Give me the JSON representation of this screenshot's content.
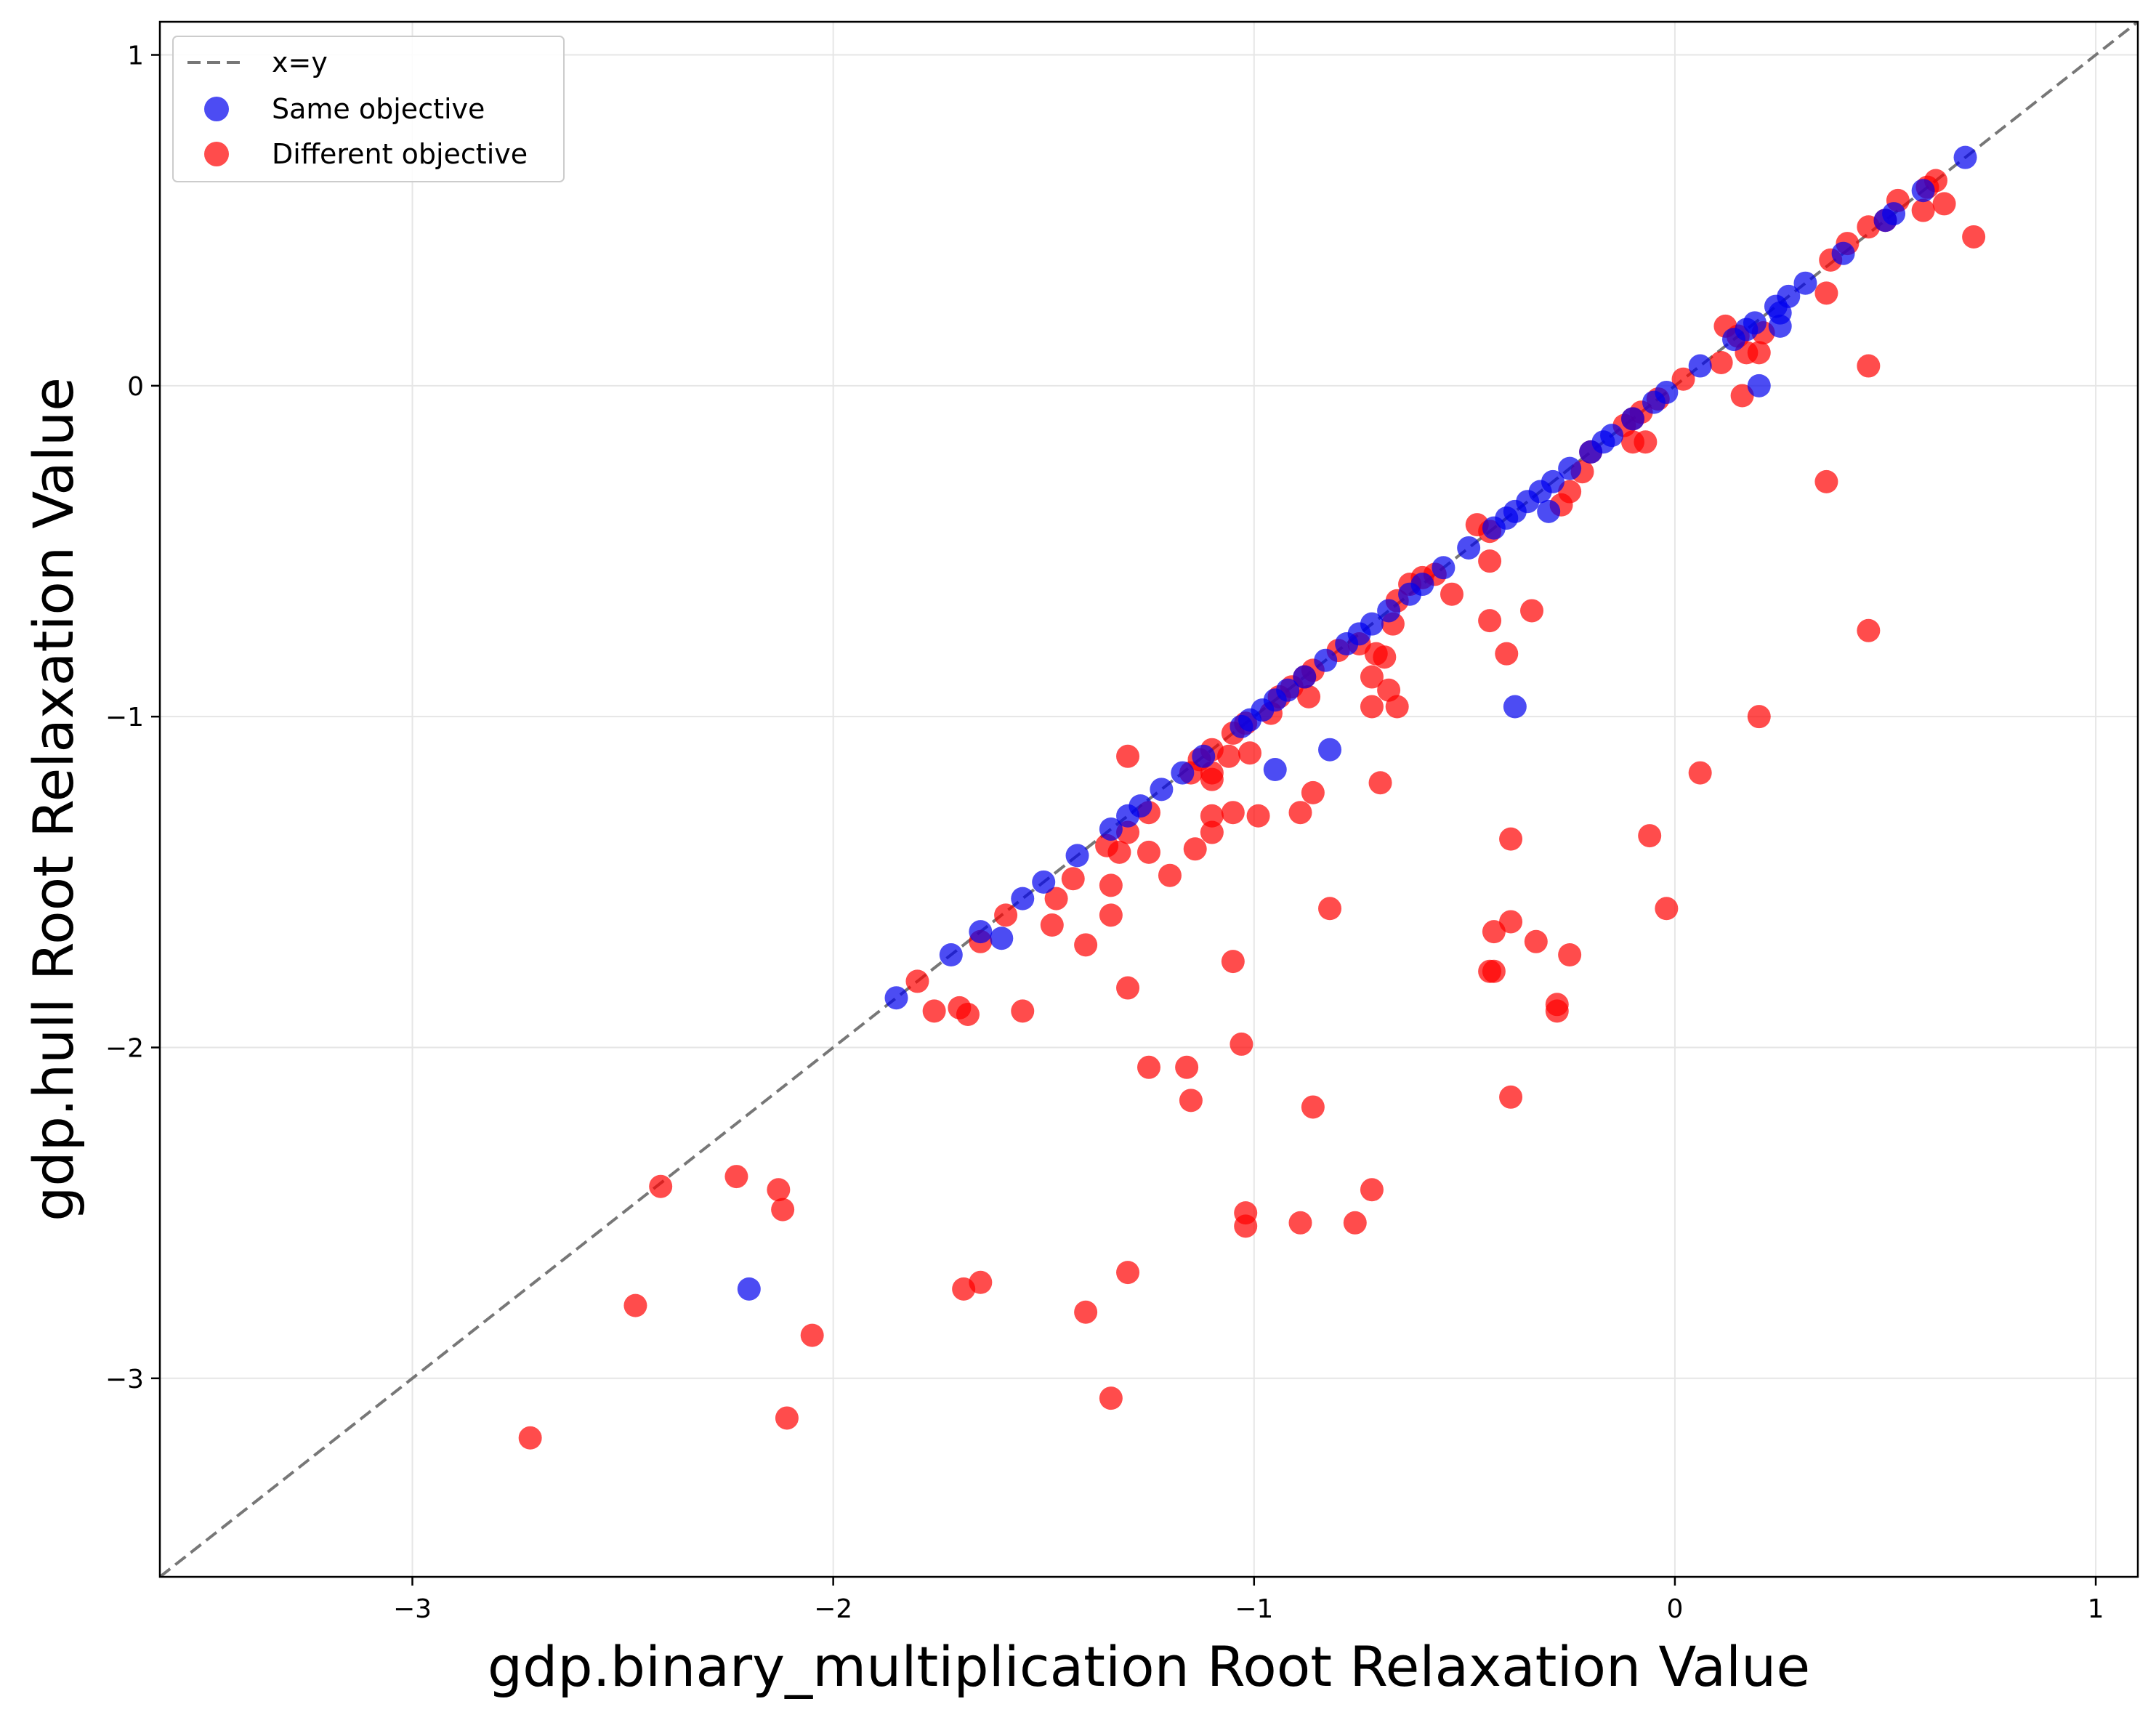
{
  "chart_data": {
    "type": "scatter",
    "xlabel": "gdp.binary_multiplication Root Relaxation Value",
    "ylabel": "gdp.hull Root Relaxation Value",
    "xlim": [
      -3.6,
      1.1
    ],
    "ylim": [
      -3.6,
      1.1
    ],
    "xticks": [
      -3,
      -2,
      -1,
      0,
      1
    ],
    "yticks": [
      -3,
      -2,
      -1,
      0,
      1
    ],
    "xtick_labels": [
      "−3",
      "−2",
      "−1",
      "0",
      "1"
    ],
    "ytick_labels": [
      "−3",
      "−2",
      "−1",
      "0",
      "1"
    ],
    "grid": true,
    "legend_position": "top-left",
    "reference_line": {
      "name": "x=y",
      "color": "#777777",
      "style": "dashed"
    },
    "series": [
      {
        "name": "Same objective",
        "color": "#0000ee",
        "points": [
          [
            0.69,
            0.69
          ],
          [
            0.59,
            0.59
          ],
          [
            0.52,
            0.52
          ],
          [
            0.5,
            0.5
          ],
          [
            0.4,
            0.4
          ],
          [
            0.31,
            0.31
          ],
          [
            0.27,
            0.27
          ],
          [
            0.24,
            0.24
          ],
          [
            0.25,
            0.22
          ],
          [
            0.25,
            0.18
          ],
          [
            0.19,
            0.19
          ],
          [
            0.17,
            0.17
          ],
          [
            0.14,
            0.14
          ],
          [
            0.2,
            0.0
          ],
          [
            0.06,
            0.06
          ],
          [
            -0.02,
            -0.02
          ],
          [
            -0.05,
            -0.05
          ],
          [
            -0.1,
            -0.1
          ],
          [
            -0.15,
            -0.15
          ],
          [
            -0.17,
            -0.17
          ],
          [
            -0.2,
            -0.2
          ],
          [
            -0.25,
            -0.25
          ],
          [
            -0.29,
            -0.29
          ],
          [
            -0.32,
            -0.32
          ],
          [
            -0.35,
            -0.35
          ],
          [
            -0.38,
            -0.38
          ],
          [
            -0.4,
            -0.4
          ],
          [
            -0.43,
            -0.43
          ],
          [
            -0.49,
            -0.49
          ],
          [
            -0.55,
            -0.55
          ],
          [
            -0.6,
            -0.6
          ],
          [
            -0.3,
            -0.38
          ],
          [
            -0.38,
            -0.97
          ],
          [
            -0.63,
            -0.63
          ],
          [
            -0.68,
            -0.68
          ],
          [
            -0.72,
            -0.72
          ],
          [
            -0.75,
            -0.75
          ],
          [
            -0.78,
            -0.78
          ],
          [
            -0.83,
            -0.83
          ],
          [
            -0.88,
            -0.88
          ],
          [
            -0.92,
            -0.92
          ],
          [
            -0.95,
            -0.95
          ],
          [
            -0.98,
            -0.98
          ],
          [
            -1.01,
            -1.01
          ],
          [
            -1.03,
            -1.03
          ],
          [
            -0.95,
            -1.16
          ],
          [
            -0.82,
            -1.1
          ],
          [
            -1.12,
            -1.12
          ],
          [
            -1.17,
            -1.17
          ],
          [
            -1.22,
            -1.22
          ],
          [
            -1.27,
            -1.27
          ],
          [
            -1.3,
            -1.3
          ],
          [
            -1.34,
            -1.34
          ],
          [
            -1.42,
            -1.42
          ],
          [
            -1.5,
            -1.5
          ],
          [
            -1.55,
            -1.55
          ],
          [
            -1.65,
            -1.65
          ],
          [
            -1.72,
            -1.72
          ],
          [
            -1.6,
            -1.67
          ],
          [
            -1.85,
            -1.85
          ],
          [
            -2.2,
            -2.73
          ]
        ]
      },
      {
        "name": "Different objective",
        "color": "#ff0000",
        "points": [
          [
            0.62,
            0.62
          ],
          [
            0.6,
            0.6
          ],
          [
            0.53,
            0.56
          ],
          [
            0.5,
            0.5
          ],
          [
            0.46,
            0.48
          ],
          [
            0.41,
            0.43
          ],
          [
            0.37,
            0.38
          ],
          [
            0.64,
            0.55
          ],
          [
            0.59,
            0.53
          ],
          [
            0.71,
            0.45
          ],
          [
            0.36,
            0.28
          ],
          [
            0.46,
            0.06
          ],
          [
            0.36,
            -0.29
          ],
          [
            0.46,
            -0.74
          ],
          [
            0.12,
            0.18
          ],
          [
            0.15,
            0.15
          ],
          [
            0.17,
            0.1
          ],
          [
            0.2,
            0.1
          ],
          [
            0.21,
            0.16
          ],
          [
            0.11,
            0.07
          ],
          [
            0.02,
            0.02
          ],
          [
            0.16,
            -0.03
          ],
          [
            -0.04,
            -0.04
          ],
          [
            -0.08,
            -0.08
          ],
          [
            -0.1,
            -0.1
          ],
          [
            -0.12,
            -0.12
          ],
          [
            -0.07,
            -0.17
          ],
          [
            -0.1,
            -0.17
          ],
          [
            -0.2,
            -0.2
          ],
          [
            -0.22,
            -0.26
          ],
          [
            -0.25,
            -0.32
          ],
          [
            -0.27,
            -0.36
          ],
          [
            -0.47,
            -0.42
          ],
          [
            -0.44,
            -0.44
          ],
          [
            -0.44,
            -0.53
          ],
          [
            -0.53,
            -0.63
          ],
          [
            -0.57,
            -0.57
          ],
          [
            -0.6,
            -0.58
          ],
          [
            -0.63,
            -0.6
          ],
          [
            -0.66,
            -0.65
          ],
          [
            -0.44,
            -0.71
          ],
          [
            -0.34,
            -0.68
          ],
          [
            -0.4,
            -0.81
          ],
          [
            -0.67,
            -0.72
          ],
          [
            -0.71,
            -0.81
          ],
          [
            -0.69,
            -0.82
          ],
          [
            -0.72,
            -0.88
          ],
          [
            -0.68,
            -0.92
          ],
          [
            -0.72,
            -0.97
          ],
          [
            -0.66,
            -0.97
          ],
          [
            -0.75,
            -0.78
          ],
          [
            -0.8,
            -0.8
          ],
          [
            -0.86,
            -0.86
          ],
          [
            -0.88,
            -0.88
          ],
          [
            -0.91,
            -0.91
          ],
          [
            -0.94,
            -0.94
          ],
          [
            -0.87,
            -0.94
          ],
          [
            -0.96,
            -0.99
          ],
          [
            -1.02,
            -1.02
          ],
          [
            -1.05,
            -1.05
          ],
          [
            -1.1,
            -1.1
          ],
          [
            -1.06,
            -1.12
          ],
          [
            -1.13,
            -1.13
          ],
          [
            -1.1,
            -1.17
          ],
          [
            -1.1,
            -1.19
          ],
          [
            -1.15,
            -1.17
          ],
          [
            -1.01,
            -1.11
          ],
          [
            -1.3,
            -1.12
          ],
          [
            -0.86,
            -1.23
          ],
          [
            -0.7,
            -1.2
          ],
          [
            -0.89,
            -1.29
          ],
          [
            -1.05,
            -1.29
          ],
          [
            -0.99,
            -1.3
          ],
          [
            -1.1,
            -1.3
          ],
          [
            -1.1,
            -1.35
          ],
          [
            -1.25,
            -1.29
          ],
          [
            -1.3,
            -1.35
          ],
          [
            -1.35,
            -1.39
          ],
          [
            -1.32,
            -1.41
          ],
          [
            -1.14,
            -1.4
          ],
          [
            -1.25,
            -1.41
          ],
          [
            -1.2,
            -1.48
          ],
          [
            -1.43,
            -1.49
          ],
          [
            -1.34,
            -1.51
          ],
          [
            -1.47,
            -1.55
          ],
          [
            -1.59,
            -1.6
          ],
          [
            -1.34,
            -1.6
          ],
          [
            -1.48,
            -1.63
          ],
          [
            -1.4,
            -1.69
          ],
          [
            -1.65,
            -1.68
          ],
          [
            -0.82,
            -1.58
          ],
          [
            -0.39,
            -1.37
          ],
          [
            -0.06,
            -1.36
          ],
          [
            -0.02,
            -1.58
          ],
          [
            0.06,
            -1.17
          ],
          [
            0.2,
            -1.0
          ],
          [
            -0.39,
            -1.62
          ],
          [
            -0.43,
            -1.65
          ],
          [
            -0.33,
            -1.68
          ],
          [
            -0.25,
            -1.72
          ],
          [
            -1.05,
            -1.74
          ],
          [
            -0.43,
            -1.77
          ],
          [
            -0.44,
            -1.77
          ],
          [
            -1.3,
            -1.82
          ],
          [
            -1.8,
            -1.8
          ],
          [
            -1.7,
            -1.88
          ],
          [
            -1.76,
            -1.89
          ],
          [
            -1.68,
            -1.9
          ],
          [
            -1.55,
            -1.89
          ],
          [
            -0.28,
            -1.87
          ],
          [
            -0.28,
            -1.89
          ],
          [
            -1.03,
            -1.99
          ],
          [
            -1.25,
            -2.06
          ],
          [
            -1.16,
            -2.06
          ],
          [
            -1.15,
            -2.16
          ],
          [
            -0.39,
            -2.15
          ],
          [
            -0.86,
            -2.18
          ],
          [
            -2.41,
            -2.42
          ],
          [
            -2.23,
            -2.39
          ],
          [
            -2.13,
            -2.43
          ],
          [
            -2.12,
            -2.49
          ],
          [
            -0.72,
            -2.43
          ],
          [
            -1.02,
            -2.5
          ],
          [
            -1.02,
            -2.54
          ],
          [
            -0.89,
            -2.53
          ],
          [
            -0.76,
            -2.53
          ],
          [
            -1.3,
            -2.68
          ],
          [
            -1.69,
            -2.73
          ],
          [
            -1.65,
            -2.71
          ],
          [
            -2.47,
            -2.78
          ],
          [
            -1.4,
            -2.8
          ],
          [
            -2.05,
            -2.87
          ],
          [
            -1.34,
            -3.06
          ],
          [
            -2.11,
            -3.12
          ],
          [
            -2.72,
            -3.18
          ]
        ]
      }
    ]
  }
}
